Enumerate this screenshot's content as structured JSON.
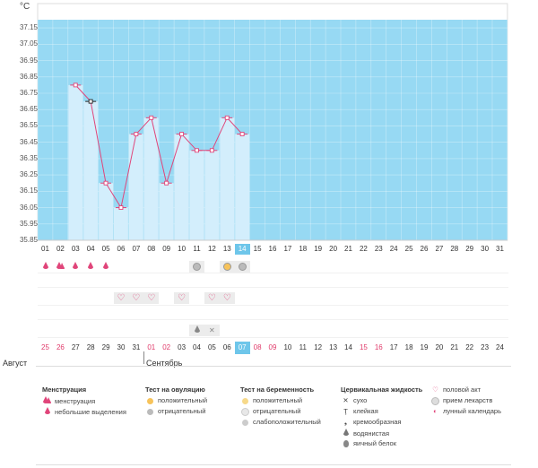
{
  "unit_label": "°C",
  "chart_data": {
    "type": "bar",
    "ylim": [
      35.85,
      37.2
    ],
    "yticks": [
      "37.15",
      "37.05",
      "36.95",
      "36.85",
      "36.75",
      "36.65",
      "36.55",
      "36.45",
      "36.35",
      "36.25",
      "36.15",
      "36.05",
      "35.95",
      "35.85"
    ],
    "categories": [
      "01",
      "02",
      "03",
      "04",
      "05",
      "06",
      "07",
      "08",
      "09",
      "10",
      "11",
      "12",
      "13",
      "14",
      "15",
      "16",
      "17",
      "18",
      "19",
      "20",
      "21",
      "22",
      "23",
      "24",
      "25",
      "26",
      "27",
      "28",
      "29",
      "30",
      "31"
    ],
    "values": [
      null,
      null,
      36.8,
      36.7,
      36.2,
      36.05,
      36.5,
      36.6,
      36.2,
      36.5,
      36.4,
      36.4,
      36.6,
      36.5,
      null,
      null,
      null,
      null,
      null,
      null,
      null,
      null,
      null,
      null,
      null,
      null,
      null,
      null,
      null,
      null,
      null
    ],
    "highlight_index": 13,
    "grid": true,
    "colors": {
      "plot_bg": "#97d9f3",
      "bar": "#d3eefc",
      "line": "#e0457a",
      "today": "#6ec6ea"
    }
  },
  "marks": {
    "menstruation": {
      "columns": [
        0,
        1,
        2,
        3,
        4
      ],
      "values": [
        "small",
        "large",
        "small",
        "small",
        "small"
      ]
    },
    "ovulation": {
      "columns": [
        10,
        12,
        13
      ],
      "values": [
        "negative",
        "positive",
        "negative"
      ]
    },
    "pregnancy_love": {
      "columns": [
        5,
        6,
        7,
        9,
        11,
        12
      ],
      "values": [
        "heart",
        "heart",
        "heart",
        "heart",
        "heart",
        "heart"
      ]
    },
    "fluid": {
      "columns": [
        10,
        11
      ],
      "values": [
        "drop",
        "cross"
      ]
    }
  },
  "dates": [
    "25",
    "26",
    "27",
    "28",
    "29",
    "30",
    "31",
    "01",
    "02",
    "03",
    "04",
    "05",
    "06",
    "07",
    "08",
    "09",
    "10",
    "11",
    "12",
    "13",
    "14",
    "15",
    "16",
    "17",
    "18",
    "19",
    "20",
    "21",
    "22",
    "23",
    "24"
  ],
  "red_dates": [
    0,
    1,
    7,
    8,
    14,
    15,
    21,
    22
  ],
  "months": {
    "prev": "Август",
    "current": "Сентябрь"
  },
  "legend": {
    "menstruation": {
      "title": "Менструация",
      "items": [
        "менструация",
        "небольшие выделения"
      ]
    },
    "ovulation": {
      "title": "Тест на овуляцию",
      "items": [
        "положительный",
        "отрицательный"
      ]
    },
    "pregnancy": {
      "title": "Тест на беременность",
      "items": [
        "положительный",
        "отрицательный",
        "слабоположительный"
      ]
    },
    "fluid": {
      "title": "Цервикальная жидкость",
      "items": [
        "сухо",
        "клейкая",
        "кремообразная",
        "водянистая",
        "яичный белок"
      ]
    },
    "other": {
      "items": [
        "половой акт",
        "прием лекарств",
        "лунный календарь"
      ]
    }
  }
}
